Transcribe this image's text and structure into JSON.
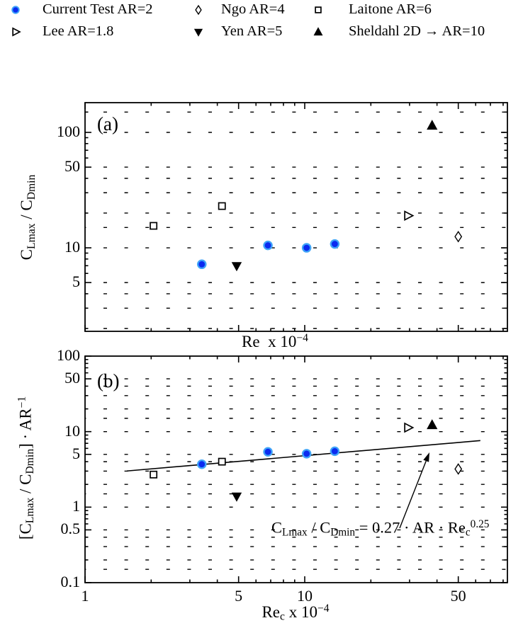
{
  "figure": {
    "colors": {
      "marker_blue_fill": "#0B2BF0",
      "marker_blue_edge": "#3FA4F8",
      "black": "#000000",
      "background": "#ffffff"
    }
  },
  "legend": {
    "items": [
      {
        "label": "Current Test AR=2",
        "marker": "filled-circle"
      },
      {
        "label": "Lee AR=1.8",
        "marker": "open-right-triangle"
      },
      {
        "label": "Ngo AR=4",
        "marker": "open-diamond"
      },
      {
        "label": "Yen AR=5",
        "marker": "filled-down-triangle"
      },
      {
        "label": "Laitone AR=6",
        "marker": "open-square"
      },
      {
        "label": "Sheldahl 2D → AR=10",
        "marker": "filled-up-triangle"
      }
    ]
  },
  "chart_data": [
    {
      "id": "a",
      "type": "scatter",
      "panel_label": "(a)",
      "x_scale": "log",
      "y_scale": "log",
      "xlim": [
        1,
        84
      ],
      "ylim": [
        1.89,
        181
      ],
      "xlabel_segments": [
        {
          "t": "Re  x 10"
        },
        {
          "t": "−4",
          "s": "sup"
        }
      ],
      "ylabel_segments": [
        {
          "t": "C"
        },
        {
          "t": "Lmax",
          "s": "sub"
        },
        {
          "t": " / C"
        },
        {
          "t": "Dmin",
          "s": "sub"
        }
      ],
      "ytick_labels": [
        {
          "v": 100,
          "t": "100"
        },
        {
          "v": 50,
          "t": "50"
        },
        {
          "v": 10,
          "t": "10"
        },
        {
          "v": 5,
          "t": "5"
        }
      ],
      "xtick_labels": [],
      "y_ticks_major": [
        5,
        10,
        50,
        100
      ],
      "y_ticks_minor": [
        2,
        3,
        4,
        6,
        7,
        8,
        9,
        20,
        30,
        40,
        60,
        70,
        80,
        90,
        150
      ],
      "x_ticks_major": [
        1,
        5,
        10,
        50
      ],
      "x_ticks_minor": [
        2,
        3,
        4,
        6,
        7,
        8,
        9,
        20,
        30,
        40,
        60,
        70,
        80
      ],
      "grid_y_values": [
        2,
        3,
        4,
        5,
        10,
        15,
        20,
        30,
        40,
        50,
        100,
        150
      ],
      "series": [
        {
          "name": "Current Test AR=2",
          "key": "current-test",
          "marker": "filled-circle",
          "points": [
            [
              3.4,
              7.2
            ],
            [
              6.8,
              10.5
            ],
            [
              10.2,
              10.0
            ],
            [
              13.7,
              10.8
            ]
          ]
        },
        {
          "name": "Lee AR=1.8",
          "key": "lee",
          "marker": "open-right-triangle",
          "points": [
            [
              29.5,
              19.0
            ]
          ]
        },
        {
          "name": "Ngo AR=4",
          "key": "ngo",
          "marker": "open-diamond",
          "points": [
            [
              50,
              12.5
            ]
          ]
        },
        {
          "name": "Yen AR=5",
          "key": "yen",
          "marker": "filled-down-triangle",
          "points": [
            [
              4.9,
              7.0
            ]
          ]
        },
        {
          "name": "Laitone AR=6",
          "key": "laitone",
          "marker": "open-square",
          "points": [
            [
              2.05,
              15.5
            ],
            [
              4.2,
              23.0
            ]
          ]
        },
        {
          "name": "Sheldahl 2D → AR=10",
          "key": "sheldahl",
          "marker": "filled-up-triangle",
          "points": [
            [
              38,
              115
            ]
          ]
        }
      ]
    },
    {
      "id": "b",
      "type": "scatter",
      "panel_label": "(b)",
      "x_scale": "log",
      "y_scale": "log",
      "xlim": [
        1,
        84
      ],
      "ylim": [
        0.1,
        100
      ],
      "xlabel_segments": [
        {
          "t": "Re"
        },
        {
          "t": "c",
          "s": "sub"
        },
        {
          "t": " x 10"
        },
        {
          "t": "−4",
          "s": "sup"
        }
      ],
      "ylabel_segments": [
        {
          "t": "[C"
        },
        {
          "t": "Lmax",
          "s": "sub"
        },
        {
          "t": " / C"
        },
        {
          "t": "Dmin",
          "s": "sub"
        },
        {
          "t": "] · AR"
        },
        {
          "t": "−1",
          "s": "sup"
        }
      ],
      "ytick_labels": [
        {
          "v": 100,
          "t": "100"
        },
        {
          "v": 50,
          "t": "50"
        },
        {
          "v": 10,
          "t": "10"
        },
        {
          "v": 5,
          "t": "5"
        },
        {
          "v": 1,
          "t": "1"
        },
        {
          "v": 0.5,
          "t": "0.5"
        },
        {
          "v": 0.1,
          "t": "0.1"
        }
      ],
      "xtick_labels": [
        {
          "v": 1,
          "t": "1"
        },
        {
          "v": 5,
          "t": "5"
        },
        {
          "v": 10,
          "t": "10"
        },
        {
          "v": 50,
          "t": "50"
        }
      ],
      "y_ticks_major": [
        0.1,
        0.5,
        1,
        5,
        10,
        50,
        100
      ],
      "y_ticks_minor": [
        0.2,
        0.3,
        0.4,
        0.6,
        0.7,
        0.8,
        0.9,
        2,
        3,
        4,
        6,
        7,
        8,
        9,
        20,
        30,
        40,
        60,
        70,
        80,
        90
      ],
      "x_ticks_major": [
        1,
        5,
        10,
        50
      ],
      "x_ticks_minor": [
        2,
        3,
        4,
        6,
        7,
        8,
        9,
        20,
        30,
        40,
        60,
        70,
        80
      ],
      "grid_y_values": [
        0.15,
        0.2,
        0.3,
        0.4,
        0.5,
        1,
        1.5,
        2,
        3,
        4,
        5,
        10,
        15,
        20,
        30,
        40,
        50
      ],
      "series": [
        {
          "name": "Current Test AR=2",
          "key": "current-test",
          "marker": "filled-circle",
          "points": [
            [
              3.4,
              3.7
            ],
            [
              6.8,
              5.4
            ],
            [
              10.2,
              5.1
            ],
            [
              13.7,
              5.5
            ]
          ]
        },
        {
          "name": "Lee AR=1.8",
          "key": "lee",
          "marker": "open-right-triangle",
          "points": [
            [
              29.5,
              11.3
            ]
          ]
        },
        {
          "name": "Ngo AR=4",
          "key": "ngo",
          "marker": "open-diamond",
          "points": [
            [
              50,
              3.2
            ]
          ]
        },
        {
          "name": "Yen AR=5",
          "key": "yen",
          "marker": "filled-down-triangle",
          "points": [
            [
              4.9,
              1.4
            ]
          ]
        },
        {
          "name": "Laitone AR=6",
          "key": "laitone",
          "marker": "open-square",
          "points": [
            [
              2.05,
              2.7
            ],
            [
              4.2,
              4.0
            ]
          ]
        },
        {
          "name": "Sheldahl 2D → AR=10",
          "key": "sheldahl",
          "marker": "filled-up-triangle",
          "points": [
            [
              38,
              12.3
            ]
          ]
        }
      ],
      "fit_line": {
        "coeff": 2.7,
        "power": 0.25,
        "x_start": 1.55,
        "x_end": 63
      },
      "annotation_segments": [
        {
          "t": "C"
        },
        {
          "t": "Lmax",
          "s": "sub"
        },
        {
          "t": " / C"
        },
        {
          "t": "Dmin",
          "s": "sub"
        },
        {
          "t": " = 0.27 · AR · Re"
        },
        {
          "t": "c",
          "s": "sub"
        },
        {
          "t": "0.25",
          "s": "sup"
        }
      ]
    }
  ]
}
